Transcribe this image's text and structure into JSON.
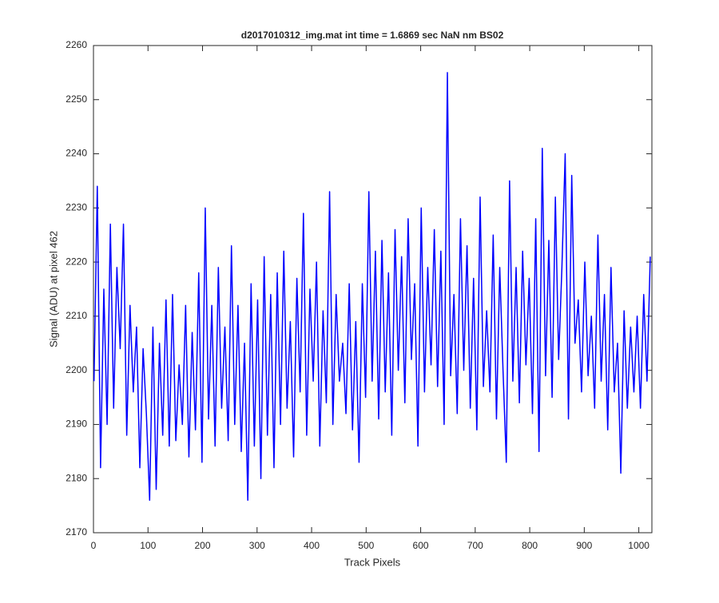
{
  "chart_data": {
    "type": "line",
    "title": "d2017010312_img.mat int time = 1.6869 sec  NaN nm BS02",
    "x_label": "Track Pixels",
    "y_label": "Signal (ADU) at pixel 462",
    "color": "#0000ff",
    "x": [
      1,
      7,
      13,
      19,
      25,
      31,
      37,
      43,
      49,
      55,
      61,
      67,
      73,
      79,
      85,
      91,
      97,
      103,
      109,
      115,
      121,
      127,
      133,
      139,
      145,
      151,
      157,
      163,
      169,
      175,
      181,
      187,
      193,
      199,
      205,
      211,
      217,
      223,
      229,
      235,
      241,
      247,
      253,
      259,
      265,
      271,
      277,
      283,
      289,
      295,
      301,
      307,
      313,
      319,
      325,
      331,
      337,
      343,
      349,
      355,
      361,
      367,
      373,
      379,
      385,
      391,
      397,
      403,
      409,
      415,
      421,
      427,
      433,
      439,
      445,
      451,
      457,
      463,
      469,
      475,
      481,
      487,
      493,
      499,
      505,
      511,
      517,
      523,
      529,
      535,
      541,
      547,
      553,
      559,
      565,
      571,
      577,
      583,
      589,
      595,
      601,
      607,
      613,
      619,
      625,
      631,
      637,
      643,
      649,
      655,
      661,
      667,
      673,
      679,
      685,
      691,
      697,
      703,
      709,
      715,
      721,
      727,
      733,
      739,
      745,
      751,
      757,
      763,
      769,
      775,
      781,
      787,
      793,
      799,
      805,
      811,
      817,
      823,
      829,
      835,
      841,
      847,
      853,
      859,
      865,
      871,
      877,
      883,
      889,
      895,
      901,
      907,
      913,
      919,
      925,
      931,
      937,
      943,
      949,
      955,
      961,
      967,
      973,
      979,
      985,
      991,
      997,
      1003,
      1009,
      1015,
      1021
    ],
    "values": [
      2198,
      2234,
      2182,
      2215,
      2190,
      2227,
      2193,
      2219,
      2204,
      2227,
      2188,
      2212,
      2196,
      2208,
      2182,
      2204,
      2192,
      2176,
      2208,
      2178,
      2205,
      2188,
      2213,
      2186,
      2214,
      2187,
      2201,
      2190,
      2212,
      2184,
      2207,
      2189,
      2218,
      2183,
      2230,
      2191,
      2212,
      2186,
      2219,
      2193,
      2208,
      2187,
      2223,
      2190,
      2212,
      2185,
      2205,
      2176,
      2216,
      2186,
      2213,
      2180,
      2221,
      2188,
      2214,
      2182,
      2218,
      2190,
      2222,
      2193,
      2209,
      2184,
      2217,
      2196,
      2229,
      2188,
      2215,
      2198,
      2220,
      2186,
      2211,
      2194,
      2233,
      2190,
      2214,
      2198,
      2205,
      2192,
      2216,
      2189,
      2209,
      2183,
      2216,
      2195,
      2233,
      2198,
      2222,
      2191,
      2224,
      2196,
      2218,
      2188,
      2226,
      2200,
      2221,
      2194,
      2228,
      2202,
      2216,
      2186,
      2230,
      2196,
      2219,
      2201,
      2226,
      2197,
      2222,
      2190,
      2255,
      2199,
      2214,
      2192,
      2228,
      2200,
      2223,
      2193,
      2217,
      2189,
      2232,
      2197,
      2211,
      2196,
      2225,
      2191,
      2219,
      2200,
      2183,
      2235,
      2198,
      2219,
      2194,
      2222,
      2201,
      2217,
      2192,
      2228,
      2185,
      2241,
      2199,
      2224,
      2195,
      2232,
      2202,
      2219,
      2240,
      2191,
      2236,
      2205,
      2213,
      2196,
      2220,
      2199,
      2210,
      2193,
      2225,
      2198,
      2214,
      2189,
      2219,
      2196,
      2205,
      2181,
      2211,
      2193,
      2208,
      2196,
      2210,
      2193,
      2214,
      2198,
      2221
    ],
    "xlim": [
      0,
      1024
    ],
    "xticks": [
      0,
      100,
      200,
      300,
      400,
      500,
      600,
      700,
      800,
      900,
      1000
    ],
    "ylim": [
      2170,
      2260
    ],
    "yticks": [
      2170,
      2180,
      2190,
      2200,
      2210,
      2220,
      2230,
      2240,
      2250,
      2260
    ]
  }
}
